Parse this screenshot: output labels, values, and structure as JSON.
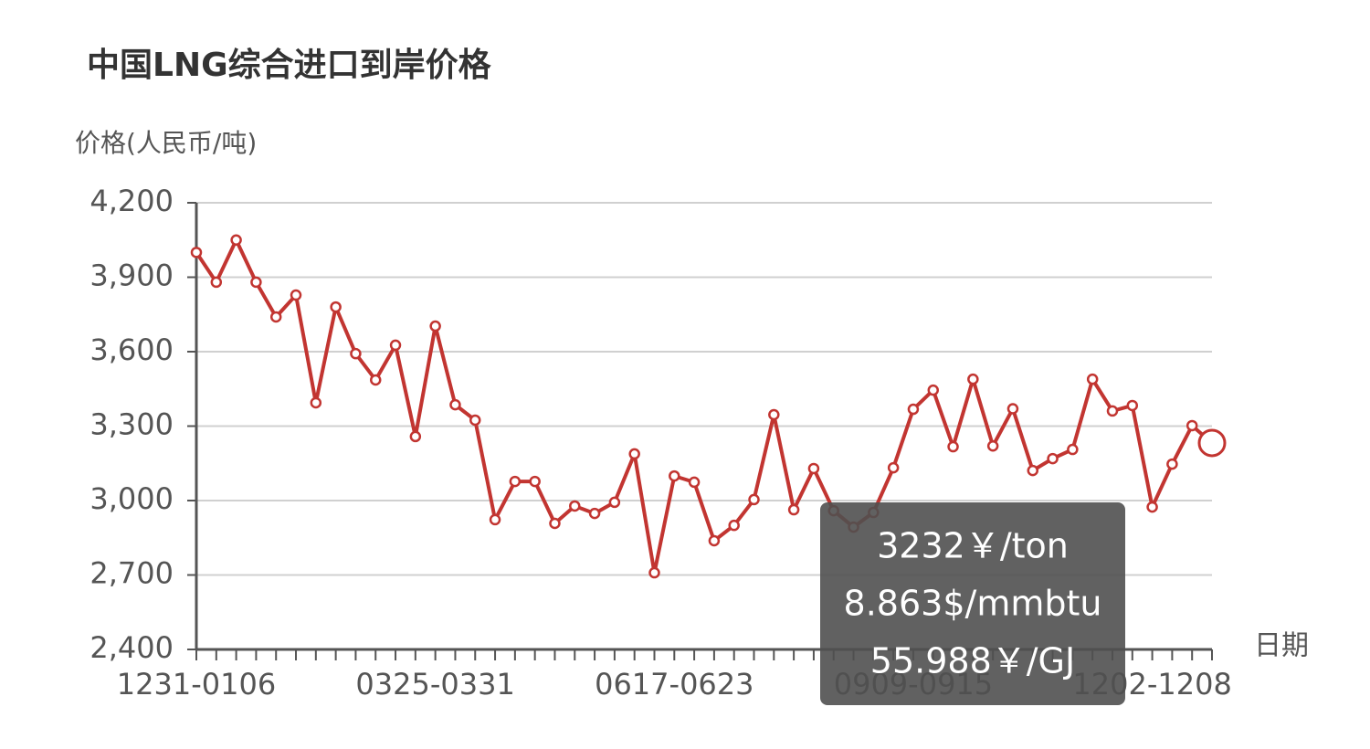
{
  "chart_data": {
    "type": "line",
    "title": "中国LNG综合进口到岸价格",
    "y_axis_label": "价格(人民币/吨)",
    "x_axis_label": "日期",
    "categories": [
      "1231-0106",
      null,
      null,
      null,
      null,
      null,
      null,
      null,
      null,
      null,
      null,
      null,
      "0325-0331",
      null,
      null,
      null,
      null,
      null,
      null,
      null,
      null,
      null,
      null,
      null,
      "0617-0623",
      null,
      null,
      null,
      null,
      null,
      null,
      null,
      null,
      null,
      null,
      null,
      "0909-0915",
      null,
      null,
      null,
      null,
      null,
      null,
      null,
      null,
      null,
      null,
      null,
      "1202-1208",
      null,
      null,
      null
    ],
    "series": [
      {
        "name": "价格",
        "color": "#c23531",
        "values": [
          4000,
          3880,
          4050,
          3880,
          3740,
          3828,
          3394,
          3780,
          3592,
          3486,
          3626,
          3258,
          3703,
          3386,
          3324,
          2923,
          3077,
          3077,
          2908,
          2978,
          2948,
          2993,
          3188,
          2709,
          3099,
          3074,
          2838,
          2900,
          3004,
          3346,
          2963,
          3129,
          2959,
          2893,
          2952,
          3132,
          3368,
          3445,
          3217,
          3489,
          3220,
          3370,
          3121,
          3169,
          3206,
          3489,
          3361,
          3383,
          2974,
          3147,
          3302,
          3232
        ]
      }
    ],
    "ylim": [
      2400,
      4200
    ],
    "yticks": [
      {
        "value": 2400,
        "label": "2,400"
      },
      {
        "value": 2700,
        "label": "2,700"
      },
      {
        "value": 3000,
        "label": "3,000"
      },
      {
        "value": 3300,
        "label": "3,300"
      },
      {
        "value": 3600,
        "label": "3,600"
      },
      {
        "value": 3900,
        "label": "3,900"
      },
      {
        "value": 4200,
        "label": "4,200"
      }
    ],
    "grid": true,
    "tooltip": {
      "index": 51,
      "lines": [
        "3232￥/ton",
        "8.863$/mmbtu",
        "55.988￥/GJ"
      ]
    }
  }
}
